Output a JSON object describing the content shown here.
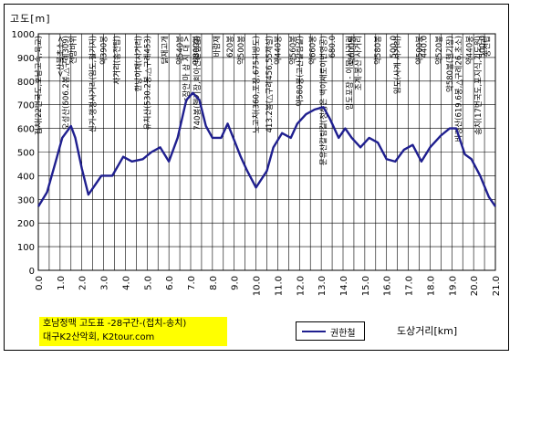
{
  "chart_data": {
    "type": "line",
    "ylabel": "고도[m]",
    "xlabel": "도상거리[km]",
    "ylim": [
      0,
      1000
    ],
    "xlim": [
      0.0,
      21.0
    ],
    "yticks": [
      "0",
      "100",
      "200",
      "300",
      "400",
      "500",
      "600",
      "700",
      "800",
      "900",
      "1000"
    ],
    "xticks": [
      "0.0",
      "1.0",
      "2.0",
      "3.0",
      "4.0",
      "5.0",
      "6.0",
      "7.0",
      "8.0",
      "9.0",
      "10.0",
      "11.0",
      "12.0",
      "13.0",
      "14.0",
      "15.0",
      "16.0",
      "17.0",
      "18.0",
      "19.0",
      "20.0",
      "21.0"
    ],
    "grid": true,
    "series": [
      {
        "name": "권한철",
        "color": "#1f1f8f",
        "x": [
          0.0,
          0.4,
          0.8,
          1.1,
          1.5,
          1.7,
          2.0,
          2.3,
          2.6,
          2.9,
          3.4,
          3.9,
          4.3,
          4.8,
          5.2,
          5.6,
          6.0,
          6.4,
          6.8,
          7.1,
          7.4,
          7.7,
          8.0,
          8.4,
          8.7,
          9.0,
          9.3,
          9.6,
          10.0,
          10.5,
          10.8,
          11.2,
          11.6,
          11.9,
          12.3,
          12.7,
          13.1,
          13.4,
          13.8,
          14.1,
          14.4,
          14.8,
          15.2,
          15.6,
          16.0,
          16.4,
          16.8,
          17.2,
          17.6,
          18.0,
          18.5,
          18.9,
          19.2,
          19.6,
          19.9,
          20.3,
          20.7,
          21.0
        ],
        "y": [
          270,
          330,
          460,
          560,
          610,
          560,
          430,
          320,
          360,
          400,
          400,
          480,
          460,
          470,
          500,
          520,
          460,
          560,
          720,
          750,
          720,
          610,
          560,
          560,
          620,
          550,
          480,
          420,
          350,
          420,
          520,
          580,
          560,
          620,
          660,
          680,
          690,
          640,
          560,
          600,
          560,
          520,
          560,
          540,
          470,
          460,
          510,
          530,
          460,
          520,
          570,
          600,
          600,
          490,
          470,
          400,
          310,
          270
        ]
      }
    ],
    "annotations": [
      {
        "x": 0.0,
        "text": "접치(22번국도,호남고속,육교)"
      },
      {
        "x": 1.0,
        "text": "<산불초소>"
      },
      {
        "x": 1.25,
        "text": "오성산(606.2봉,△구례309)"
      },
      {
        "x": 1.6,
        "text": "전망바위"
      },
      {
        "x": 2.5,
        "text": "신기-행정사거리(임도,철기지)"
      },
      {
        "x": 3.0,
        "text": "약390봉"
      },
      {
        "x": 3.6,
        "text": "사거리(송전탑)"
      },
      {
        "x": 4.6,
        "text": "한방이재(사거리)"
      },
      {
        "x": 5.0,
        "text": "유치산(530.2봉,△구례453)"
      },
      {
        "x": 5.8,
        "text": "닭재고개"
      },
      {
        "x": 6.5,
        "text": "약540봉"
      },
      {
        "x": 6.8,
        "text": "<장안 마 삼 지 대 >"
      },
      {
        "x": 7.25,
        "text": "약800봉"
      },
      {
        "x": 7.3,
        "text": "740봉(헬기장,희아산갈림길)"
      },
      {
        "x": 8.2,
        "text": "바람재"
      },
      {
        "x": 8.8,
        "text": "620봉"
      },
      {
        "x": 9.3,
        "text": "약500봉"
      },
      {
        "x": 10.0,
        "text": "노고치(360,포장,675지방도)"
      },
      {
        "x": 10.6,
        "text": "413.2봉(△구례456,55제설)"
      },
      {
        "x": 11.0,
        "text": "약440봉"
      },
      {
        "x": 11.7,
        "text": "약560봉"
      },
      {
        "x": 12.0,
        "text": "약580봉(고산갈림길)"
      },
      {
        "x": 12.6,
        "text": "약660봉"
      },
      {
        "x": 13.1,
        "text": "문유산갈림길(정상은 백이새로이번영공)"
      },
      {
        "x": 13.5,
        "text": "680.0"
      },
      {
        "x": 14.3,
        "text": "임도포장 - 이문 사거리"
      },
      {
        "x": 14.4,
        "text": "약600봉"
      },
      {
        "x": 14.7,
        "text": "조계·봉산 사거리"
      },
      {
        "x": 15.6,
        "text": "약580봉"
      },
      {
        "x": 16.3,
        "text": "500.0"
      },
      {
        "x": 16.5,
        "text": "임도(사계 사거리)"
      },
      {
        "x": 17.5,
        "text": "약500봉"
      },
      {
        "x": 17.7,
        "text": "440.0"
      },
      {
        "x": 18.4,
        "text": "약520봉"
      },
      {
        "x": 18.9,
        "text": "약580봉(헬기장)"
      },
      {
        "x": 19.3,
        "text": "바랑산(619.6봉,△구례26,초소)"
      },
      {
        "x": 19.8,
        "text": "약440봉"
      },
      {
        "x": 20.4,
        "text": "500.0"
      },
      {
        "x": 20.2,
        "text": "송치(17번국도,포지식,기도원)"
      },
      {
        "x": 20.6,
        "text": "송전탑"
      }
    ]
  },
  "title_box": {
    "line1": "호남정맥 고도표 -28구간-(접치-송치)",
    "line2": "대구K2산악회, K2tour.com"
  }
}
